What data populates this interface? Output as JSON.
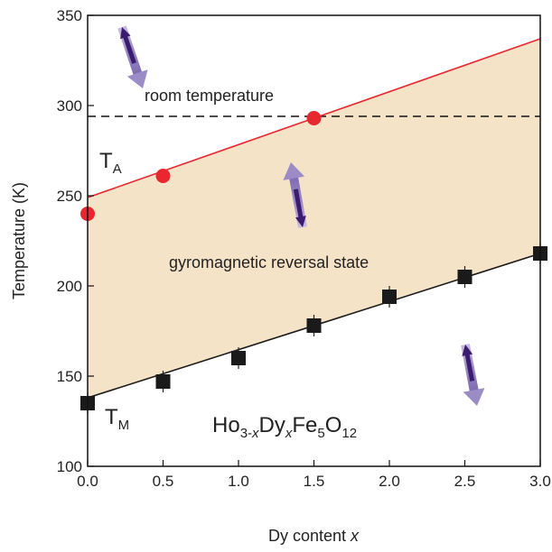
{
  "chart_data": {
    "type": "scatter",
    "x_ticks": [
      "0.0",
      "0.5",
      "1.0",
      "1.5",
      "2.0",
      "2.5",
      "3.0"
    ],
    "y_ticks": [
      "100",
      "150",
      "200",
      "250",
      "300",
      "350"
    ],
    "xlim": [
      0,
      3
    ],
    "ylim": [
      100,
      350
    ],
    "xlabel": "Dy content",
    "xlabel_var": "x",
    "ylabel": "Temperature (K)",
    "grid": false,
    "series": [
      {
        "name": "TA",
        "color": "#e8272f",
        "marker": "circle",
        "points": [
          {
            "x": 0.0,
            "y": 240
          },
          {
            "x": 0.5,
            "y": 261
          },
          {
            "x": 1.5,
            "y": 293
          }
        ],
        "fit": [
          {
            "x": 0.0,
            "y": 249
          },
          {
            "x": 3.0,
            "y": 337
          }
        ]
      },
      {
        "name": "TM",
        "color": "#1a1a1a",
        "marker": "square",
        "points": [
          {
            "x": 0.0,
            "y": 135
          },
          {
            "x": 0.5,
            "y": 147
          },
          {
            "x": 1.0,
            "y": 160
          },
          {
            "x": 1.5,
            "y": 178
          },
          {
            "x": 2.0,
            "y": 194
          },
          {
            "x": 2.5,
            "y": 205
          },
          {
            "x": 3.0,
            "y": 218
          }
        ],
        "fit": [
          {
            "x": 0.0,
            "y": 138
          },
          {
            "x": 3.0,
            "y": 218
          }
        ]
      }
    ],
    "reference_line": {
      "label": "room temperature",
      "y": 294
    },
    "region_label": "gyromagnetic reversal state",
    "region_color": "#f5e3c8",
    "label_TA_main": "T",
    "label_TA_sub": "A",
    "label_TM_main": "T",
    "label_TM_sub": "M",
    "formula": {
      "p1": "Ho",
      "s1": "3-",
      "sx1": "x",
      "p2": "Dy",
      "sx2": "x",
      "p3": "Fe",
      "s3": "5",
      "p4": "O",
      "s4": "12"
    },
    "arrow_color": "#9b8bc6",
    "arrow_dark": "#3b1c6e"
  }
}
